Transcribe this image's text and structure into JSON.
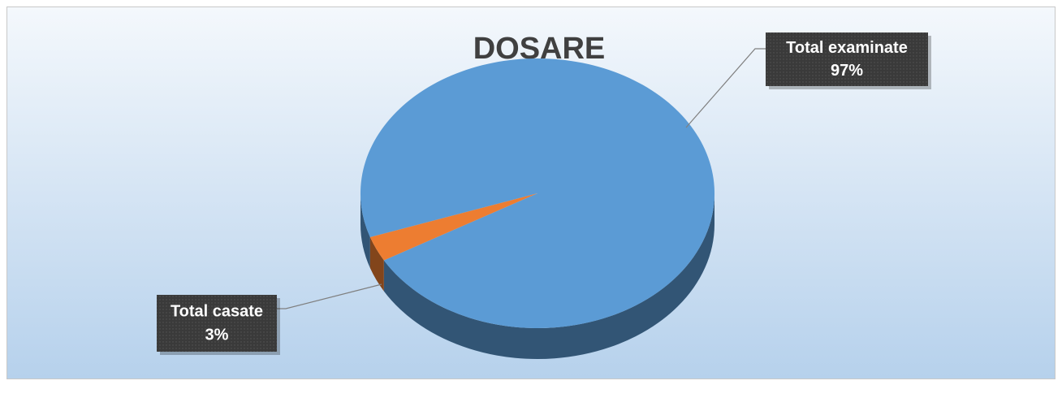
{
  "chart_data": {
    "type": "pie",
    "title": "DOSARE",
    "categories": [
      "Total examinate",
      "Total casate"
    ],
    "values": [
      97,
      3
    ],
    "value_labels": [
      "97%",
      "3%"
    ],
    "colors": [
      "#5b9bd5",
      "#ed7d31"
    ]
  }
}
